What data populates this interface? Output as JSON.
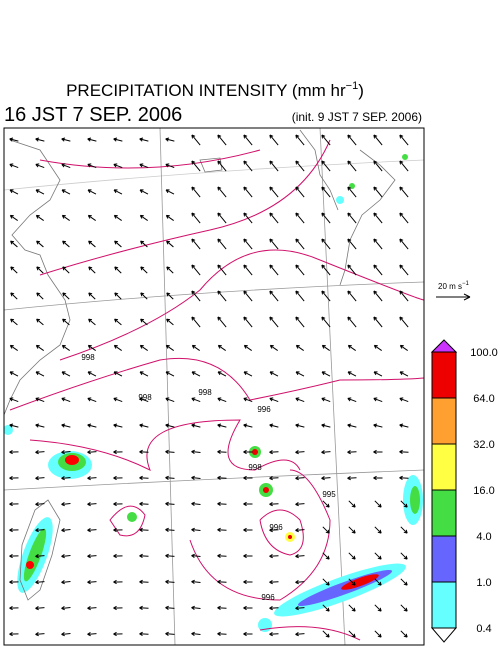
{
  "header": {
    "title": {
      "text": "PRECIPITATION INTENSITY (mm hr",
      "sup": "−1",
      "end": ")"
    },
    "valid_time": "16 JST 7 SEP. 2006",
    "init_time": "(init. 9 JST 7 SEP. 2006)"
  },
  "vector_key": {
    "text": "20 m s",
    "sup": "−1"
  },
  "contour_labels": [
    "998",
    "998",
    "998",
    "996",
    "998",
    "995",
    "996",
    "996"
  ],
  "colorbar": {
    "levels": [
      {
        "value": 100,
        "label": "100.0"
      },
      {
        "value": 64,
        "label": "64.0"
      },
      {
        "value": 32,
        "label": "32.0"
      },
      {
        "value": 16,
        "label": "16.0"
      },
      {
        "value": 4,
        "label": "4.0"
      },
      {
        "value": 1,
        "label": "1.0"
      },
      {
        "value": 0.4,
        "label": "0.4"
      }
    ],
    "colors": [
      "#ee0000",
      "#ffa030",
      "#ffff44",
      "#44dd44",
      "#6666ff",
      "#66ffff"
    ],
    "over_color": "#cc33ff",
    "under_color": "#ffffff"
  }
}
